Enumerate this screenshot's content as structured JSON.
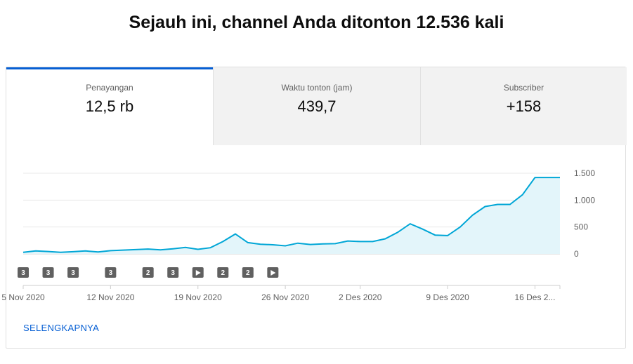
{
  "headline": "Sejauh ini, channel Anda ditonton 12.536 kali",
  "tabs": [
    {
      "label": "Penayangan",
      "value": "12,5 rb",
      "selected": true
    },
    {
      "label": "Waktu tonton (jam)",
      "value": "439,7",
      "selected": false
    },
    {
      "label": "Subscriber",
      "value": "+158",
      "selected": false
    }
  ],
  "see_more": "SELENGKAPNYA",
  "colors": {
    "accent": "#065fd4",
    "line": "#00a6d6",
    "fill": "#e3f5fa",
    "marker": "#606060"
  },
  "chart_data": {
    "type": "area",
    "x_tick_labels": [
      "5 Nov 2020",
      "12 Nov 2020",
      "19 Nov 2020",
      "26 Nov 2020",
      "2 Des 2020",
      "9 Des 2020",
      "16 Des 2..."
    ],
    "y_tick_labels": [
      "1.500",
      "1.000",
      "500",
      "0"
    ],
    "y_ticks": [
      1500,
      1000,
      500,
      0
    ],
    "ylim": [
      0,
      1500
    ],
    "grid": true,
    "y_axis_side": "right",
    "series": [
      {
        "x": [
          "5 Nov",
          "6 Nov",
          "7 Nov",
          "8 Nov",
          "9 Nov",
          "10 Nov",
          "11 Nov",
          "12 Nov",
          "13 Nov",
          "14 Nov",
          "15 Nov",
          "16 Nov",
          "17 Nov",
          "18 Nov",
          "19 Nov",
          "20 Nov",
          "21 Nov",
          "22 Nov",
          "23 Nov",
          "24 Nov",
          "25 Nov",
          "26 Nov",
          "27 Nov",
          "28 Nov",
          "29 Nov",
          "30 Nov",
          "1 Des",
          "2 Des",
          "3 Des",
          "4 Des",
          "5 Des",
          "6 Des",
          "7 Des",
          "8 Des",
          "9 Des",
          "10 Des",
          "11 Des",
          "12 Des",
          "13 Des",
          "14 Des",
          "15 Des",
          "16 Des",
          "17 Des",
          "18 Des"
        ],
        "values": [
          30,
          55,
          45,
          30,
          40,
          55,
          35,
          60,
          70,
          80,
          90,
          75,
          95,
          120,
          85,
          115,
          230,
          370,
          210,
          180,
          170,
          150,
          200,
          175,
          185,
          190,
          240,
          230,
          230,
          280,
          400,
          560,
          460,
          350,
          340,
          500,
          720,
          880,
          920,
          920,
          1100,
          1420,
          1420,
          1420
        ]
      }
    ],
    "annotations": [
      {
        "x": "5 Nov",
        "label": "3"
      },
      {
        "x": "7 Nov",
        "label": "3"
      },
      {
        "x": "9 Nov",
        "label": "3"
      },
      {
        "x": "12 Nov",
        "label": "3"
      },
      {
        "x": "15 Nov",
        "label": "2"
      },
      {
        "x": "17 Nov",
        "label": "3"
      },
      {
        "x": "19 Nov",
        "label": "play"
      },
      {
        "x": "21 Nov",
        "label": "2"
      },
      {
        "x": "23 Nov",
        "label": "2"
      },
      {
        "x": "25 Nov",
        "label": "play"
      }
    ]
  }
}
